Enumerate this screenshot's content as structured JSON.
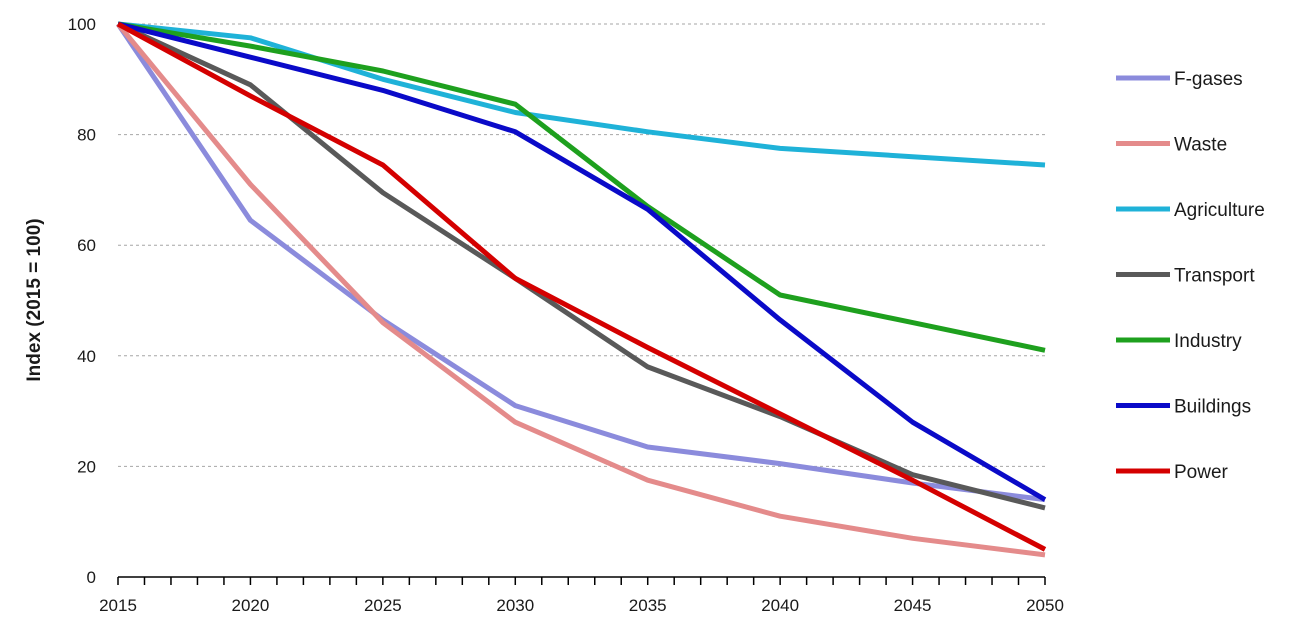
{
  "chart_data": {
    "type": "line",
    "title": "",
    "xlabel": "",
    "ylabel": "Index (2015 = 100)",
    "x": [
      2015,
      2020,
      2025,
      2030,
      2035,
      2040,
      2045,
      2050
    ],
    "xlim": [
      2015,
      2050
    ],
    "ylim": [
      0,
      100
    ],
    "yticks": [
      0,
      20,
      40,
      60,
      80,
      100
    ],
    "xticks": [
      2015,
      2020,
      2025,
      2030,
      2035,
      2040,
      2045,
      2050
    ],
    "grid": "horizontal-dashed",
    "legend_position": "right",
    "series": [
      {
        "name": "F-gases",
        "color": "#8b8bdc",
        "values": [
          100,
          64.5,
          46.5,
          31,
          23.5,
          20.5,
          17,
          14
        ]
      },
      {
        "name": "Waste",
        "color": "#e48b8b",
        "values": [
          100,
          71,
          46,
          28,
          17.5,
          11,
          7,
          4
        ]
      },
      {
        "name": "Agriculture",
        "color": "#1fb2d8",
        "values": [
          100,
          97.5,
          90,
          84,
          80.5,
          77.5,
          76,
          74.5
        ]
      },
      {
        "name": "Transport",
        "color": "#595959",
        "values": [
          100,
          89,
          69.5,
          54,
          38,
          29,
          18.5,
          12.5
        ]
      },
      {
        "name": "Industry",
        "color": "#1ea01e",
        "values": [
          100,
          96,
          91.5,
          85.5,
          67,
          51,
          46,
          41
        ]
      },
      {
        "name": "Buildings",
        "color": "#0a0ac8",
        "values": [
          100,
          94,
          88,
          80.5,
          66.5,
          46.5,
          28,
          14
        ]
      },
      {
        "name": "Power",
        "color": "#d40000",
        "values": [
          100,
          87,
          74.5,
          54,
          41.5,
          29.5,
          17.5,
          5
        ]
      }
    ]
  }
}
